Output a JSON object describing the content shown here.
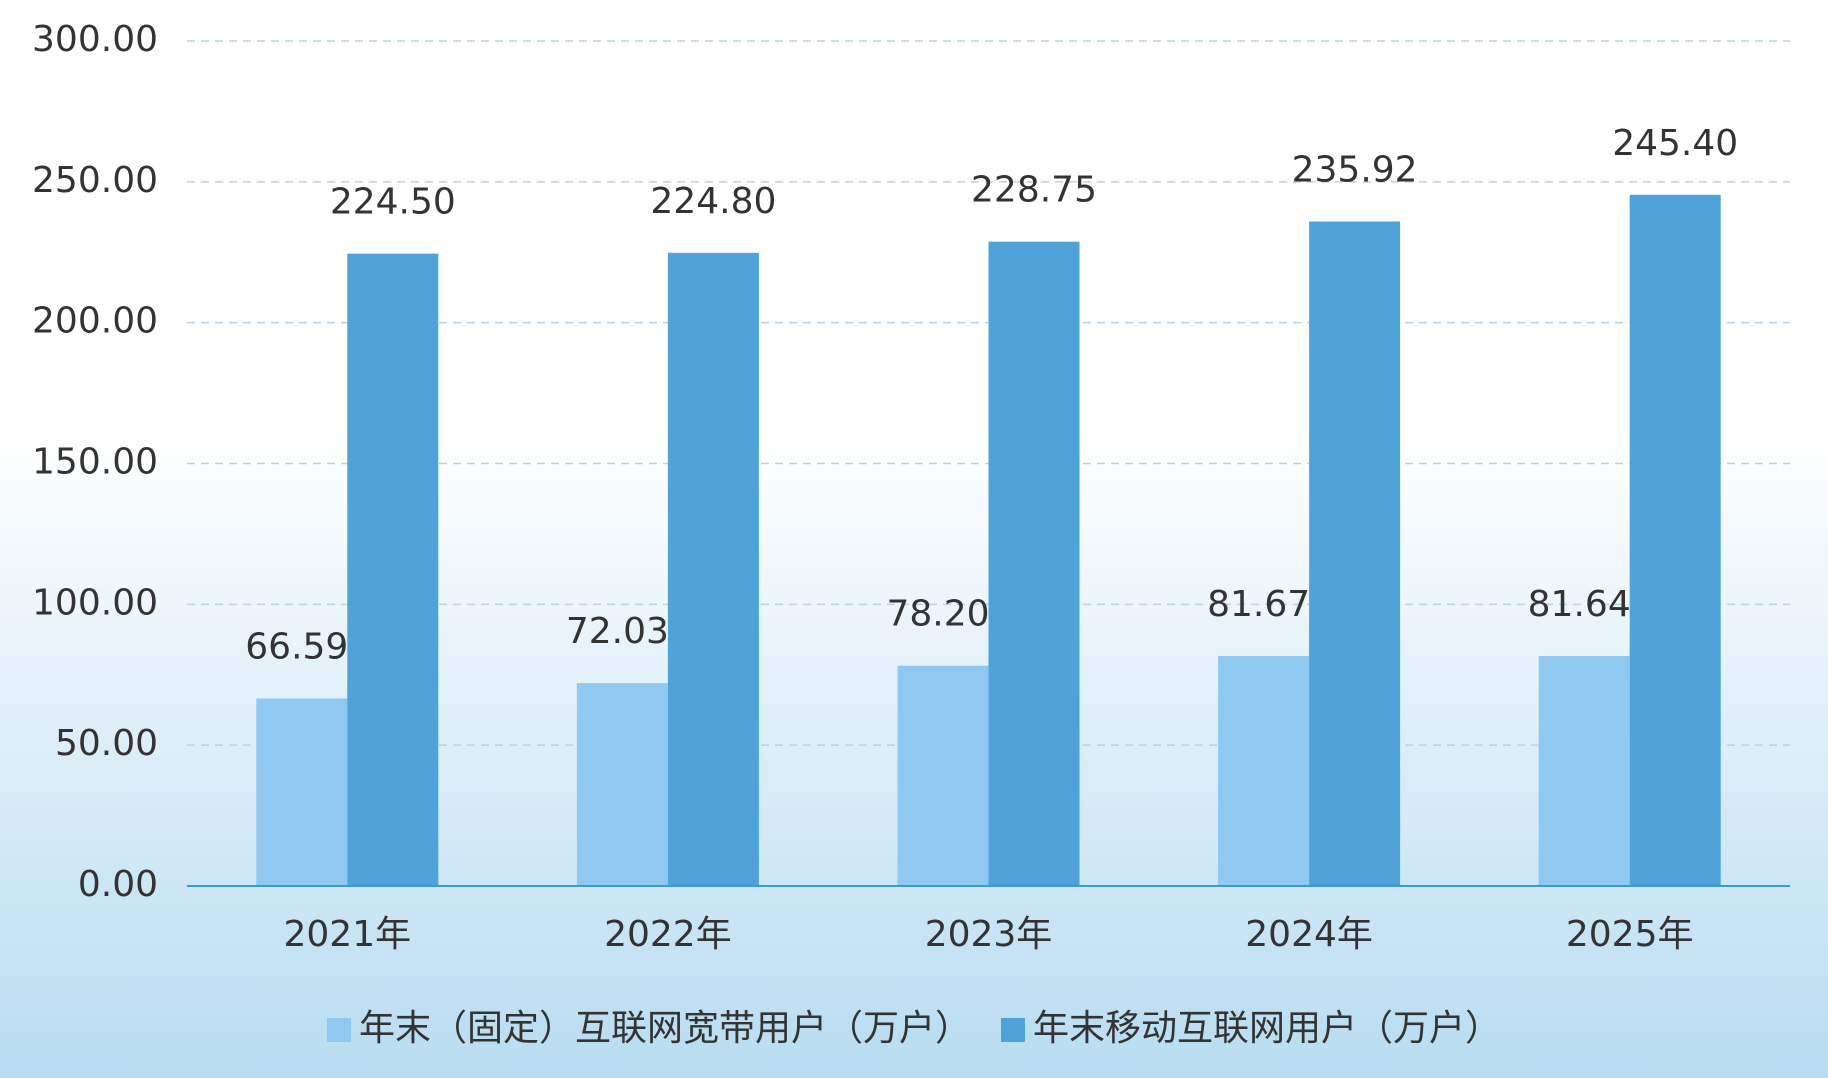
{
  "chart_data": {
    "type": "bar",
    "categories": [
      "2021年",
      "2022年",
      "2023年",
      "2024年",
      "2025年"
    ],
    "series": [
      {
        "name": "年末（固定）互联网宽带用户（万户）",
        "color": "#8fc8f0",
        "values": [
          66.59,
          72.03,
          78.2,
          81.67,
          81.64
        ],
        "value_labels": [
          "66.59",
          "72.03",
          "78.20",
          "81.67",
          "81.64"
        ]
      },
      {
        "name": "年末移动互联网用户（万户）",
        "color": "#4fa3d8",
        "values": [
          224.5,
          224.8,
          228.75,
          235.92,
          245.4
        ],
        "value_labels": [
          "224.50",
          "224.80",
          "228.75",
          "235.92",
          "245.40"
        ]
      }
    ],
    "ylim": [
      0,
      300
    ],
    "yticks": [
      {
        "value": 0,
        "label": "0.00"
      },
      {
        "value": 50,
        "label": "50.00"
      },
      {
        "value": 100,
        "label": "100.00"
      },
      {
        "value": 150,
        "label": "150.00"
      },
      {
        "value": 200,
        "label": "200.00"
      },
      {
        "value": 250,
        "label": "250.00"
      },
      {
        "value": 300,
        "label": "300.00"
      }
    ],
    "grid": true,
    "legend": "bottom"
  }
}
